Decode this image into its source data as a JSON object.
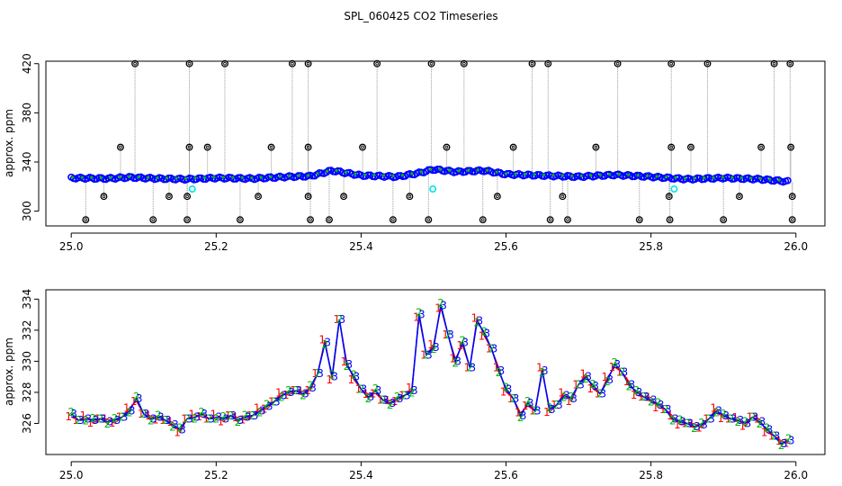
{
  "title": "SPL_060425  CO2 Timeseries",
  "chart_data": [
    {
      "type": "scatter",
      "ylabel": "approx. ppm",
      "xlim": [
        24.965,
        26.04
      ],
      "ylim": [
        288,
        422
      ],
      "xticks": [
        25.0,
        25.2,
        25.4,
        25.6,
        25.8,
        26.0
      ],
      "xtick_labels": [
        "25.0",
        "25.2",
        "25.4",
        "25.6",
        "25.8",
        "26.0"
      ],
      "yticks": [
        300,
        340,
        380,
        420
      ],
      "ytick_labels": [
        "300",
        "340",
        "380",
        "420"
      ],
      "colors": {
        "black": "#000000",
        "blue": "#0000ff",
        "green": "#00bb00",
        "red": "#ff0000",
        "cyan": "#00e5e5",
        "grey": "#999999"
      },
      "baseline": [
        [
          25.0,
          327
        ],
        [
          25.05,
          326.5
        ],
        [
          25.08,
          327.5
        ],
        [
          25.12,
          326.5
        ],
        [
          25.16,
          326
        ],
        [
          25.2,
          327
        ],
        [
          25.25,
          326.5
        ],
        [
          25.3,
          328
        ],
        [
          25.33,
          328.5
        ],
        [
          25.36,
          333
        ],
        [
          25.4,
          329
        ],
        [
          25.45,
          328
        ],
        [
          25.48,
          331
        ],
        [
          25.5,
          334
        ],
        [
          25.53,
          332
        ],
        [
          25.57,
          333
        ],
        [
          25.6,
          330
        ],
        [
          25.65,
          329
        ],
        [
          25.7,
          328
        ],
        [
          25.75,
          329.5
        ],
        [
          25.8,
          328
        ],
        [
          25.85,
          326
        ],
        [
          25.9,
          327
        ],
        [
          25.95,
          326
        ],
        [
          25.99,
          324
        ]
      ],
      "spikes_high": [
        [
          25.088,
          420
        ],
        [
          25.163,
          420
        ],
        [
          25.212,
          420
        ],
        [
          25.305,
          420
        ],
        [
          25.327,
          420
        ],
        [
          25.422,
          420
        ],
        [
          25.497,
          420
        ],
        [
          25.542,
          420
        ],
        [
          25.636,
          420
        ],
        [
          25.658,
          420
        ],
        [
          25.754,
          420
        ],
        [
          25.828,
          420
        ],
        [
          25.878,
          420
        ],
        [
          25.97,
          420
        ],
        [
          25.992,
          420
        ]
      ],
      "spikes_mid": [
        [
          25.068,
          352
        ],
        [
          25.163,
          352
        ],
        [
          25.188,
          352
        ],
        [
          25.276,
          352
        ],
        [
          25.327,
          352
        ],
        [
          25.402,
          352
        ],
        [
          25.518,
          352
        ],
        [
          25.61,
          352
        ],
        [
          25.724,
          352
        ],
        [
          25.828,
          352
        ],
        [
          25.855,
          352
        ],
        [
          25.952,
          352
        ],
        [
          25.993,
          352
        ]
      ],
      "spikes_low": [
        [
          25.045,
          312
        ],
        [
          25.135,
          312
        ],
        [
          25.16,
          312
        ],
        [
          25.258,
          312
        ],
        [
          25.327,
          312
        ],
        [
          25.376,
          312
        ],
        [
          25.467,
          312
        ],
        [
          25.588,
          312
        ],
        [
          25.678,
          312
        ],
        [
          25.825,
          312
        ],
        [
          25.922,
          312
        ],
        [
          25.995,
          312
        ]
      ],
      "spikes_bottom": [
        [
          25.02,
          293
        ],
        [
          25.113,
          293
        ],
        [
          25.16,
          293
        ],
        [
          25.233,
          293
        ],
        [
          25.33,
          293
        ],
        [
          25.356,
          293
        ],
        [
          25.444,
          293
        ],
        [
          25.493,
          293
        ],
        [
          25.568,
          293
        ],
        [
          25.661,
          293
        ],
        [
          25.685,
          293
        ],
        [
          25.784,
          293
        ],
        [
          25.826,
          293
        ],
        [
          25.9,
          293
        ],
        [
          25.995,
          293
        ]
      ],
      "cyan_points": [
        [
          25.167,
          318
        ],
        [
          25.499,
          318
        ],
        [
          25.832,
          318
        ]
      ]
    },
    {
      "type": "line",
      "ylabel": "approx. ppm",
      "xlim": [
        24.965,
        26.04
      ],
      "ylim": [
        324.0,
        334.6
      ],
      "xticks": [
        25.0,
        25.2,
        25.4,
        25.6,
        25.8,
        26.0
      ],
      "xtick_labels": [
        "25.0",
        "25.2",
        "25.4",
        "25.6",
        "25.8",
        "26.0"
      ],
      "yticks": [
        326,
        328,
        330,
        332,
        334
      ],
      "ytick_labels": [
        "326",
        "328",
        "330",
        "332",
        "334"
      ],
      "series": [
        {
          "marker": "1",
          "color": "#ff0000"
        },
        {
          "marker": "2",
          "color": "#00bb00"
        },
        {
          "marker": "3",
          "color": "#0000ff"
        }
      ],
      "x": [
        25.0,
        25.01,
        25.02,
        25.03,
        25.04,
        25.05,
        25.06,
        25.07,
        25.08,
        25.09,
        25.1,
        25.11,
        25.12,
        25.13,
        25.14,
        25.15,
        25.16,
        25.17,
        25.18,
        25.19,
        25.2,
        25.21,
        25.22,
        25.23,
        25.24,
        25.25,
        25.26,
        25.27,
        25.28,
        25.29,
        25.3,
        25.31,
        25.32,
        25.33,
        25.34,
        25.35,
        25.36,
        25.37,
        25.38,
        25.39,
        25.4,
        25.41,
        25.42,
        25.43,
        25.44,
        25.45,
        25.46,
        25.47,
        25.48,
        25.49,
        25.5,
        25.51,
        25.52,
        25.53,
        25.54,
        25.55,
        25.56,
        25.57,
        25.58,
        25.59,
        25.6,
        25.61,
        25.62,
        25.63,
        25.64,
        25.65,
        25.66,
        25.67,
        25.68,
        25.69,
        25.7,
        25.71,
        25.72,
        25.73,
        25.74,
        25.75,
        25.76,
        25.77,
        25.78,
        25.79,
        25.8,
        25.81,
        25.82,
        25.83,
        25.84,
        25.85,
        25.86,
        25.87,
        25.88,
        25.89,
        25.9,
        25.91,
        25.92,
        25.93,
        25.94,
        25.95,
        25.96,
        25.97,
        25.98,
        25.99
      ],
      "y": [
        326.6,
        326.2,
        326.3,
        326.2,
        326.3,
        326.1,
        326.2,
        326.4,
        326.8,
        327.6,
        326.6,
        326.3,
        326.4,
        326.2,
        325.9,
        325.6,
        326.3,
        326.4,
        326.6,
        326.3,
        326.4,
        326.3,
        326.5,
        326.2,
        326.4,
        326.5,
        326.8,
        327.1,
        327.4,
        327.8,
        328.0,
        328.1,
        327.9,
        328.3,
        329.2,
        331.2,
        329.0,
        332.7,
        329.8,
        329.0,
        328.2,
        327.7,
        328.1,
        327.5,
        327.3,
        327.6,
        327.8,
        328.1,
        333.0,
        330.4,
        330.9,
        333.6,
        331.7,
        330.0,
        331.2,
        329.6,
        332.6,
        331.8,
        330.8,
        329.4,
        328.2,
        327.6,
        326.5,
        327.3,
        326.8,
        329.4,
        326.9,
        327.2,
        327.8,
        327.6,
        328.5,
        329.0,
        328.4,
        327.9,
        328.8,
        329.8,
        329.3,
        328.5,
        328.0,
        327.7,
        327.5,
        327.2,
        326.9,
        326.3,
        326.1,
        326.0,
        325.8,
        325.9,
        326.3,
        326.8,
        326.5,
        326.3,
        326.2,
        326.0,
        326.4,
        326.1,
        325.6,
        325.2,
        324.7,
        324.9
      ]
    }
  ]
}
